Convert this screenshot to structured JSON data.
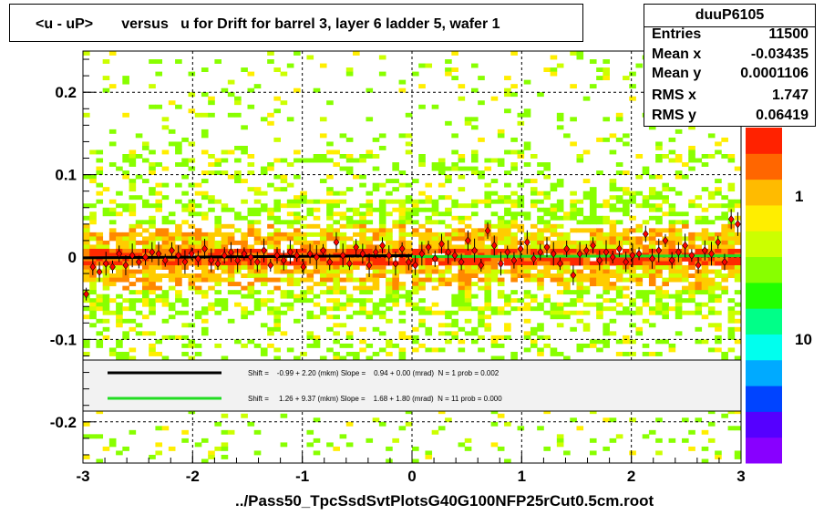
{
  "title": "<u - uP>       versus   u for Drift for barrel 3, layer 6 ladder 5, wafer 1",
  "stats": {
    "name": "duuP6105",
    "rows": [
      {
        "label": "Entries",
        "value": "11500"
      },
      {
        "label": "Mean x",
        "value": "-0.03435"
      },
      {
        "label": "Mean y",
        "value": "0.0001106"
      },
      {
        "label": "RMS x",
        "value": "1.747"
      },
      {
        "label": "RMS y",
        "value": "0.06419"
      }
    ]
  },
  "filename": "../Pass50_TpcSsdSvtPlotsG40G100NFP25rCut0.5cm.root",
  "legend": {
    "entries": [
      {
        "text": "Shift =    -0.99 + 2.20 (mkm) Slope =    0.94 + 0.00 (mrad)  N = 1 prob = 0.002",
        "color": "#000000"
      },
      {
        "text": "Shift =     1.26 + 9.37 (mkm) Slope =    1.68 + 1.80 (mrad)  N = 11 prob = 0.000",
        "color": "#00dd00"
      }
    ]
  },
  "colors": {
    "palette": [
      "#8800ff",
      "#5500ff",
      "#0044ff",
      "#00aaff",
      "#00ffee",
      "#00ff88",
      "#22ff00",
      "#88ff00",
      "#ccff00",
      "#ffee00",
      "#ffbb00",
      "#ff6600",
      "#ff2200"
    ],
    "fit_black": "#000000",
    "fit_green": "#22dd22",
    "points": "#ff0000"
  },
  "chart_data": {
    "type": "heatmap",
    "title": "<u - uP>       versus   u for Drift for barrel 3, layer 6 ladder 5, wafer 1",
    "xlabel": "../Pass50_TpcSsdSvtPlotsG40G100NFP25rCut0.5cm.root",
    "ylabel": "",
    "xlim": [
      -3,
      3
    ],
    "ylim": [
      -0.25,
      0.25
    ],
    "x_ticks": [
      "-3",
      "-2",
      "-1",
      "0",
      "1",
      "2",
      "3"
    ],
    "y_ticks": [
      "-0.2",
      "-0.1",
      "0",
      "0.1",
      "0.2"
    ],
    "z_ticks": [
      "1",
      "10"
    ],
    "z_scale": "log",
    "grid": true,
    "profile_points": {
      "x": [
        -2.97,
        -2.91,
        -2.85,
        -2.79,
        -2.73,
        -2.67,
        -2.61,
        -2.55,
        -2.49,
        -2.43,
        -2.37,
        -2.31,
        -2.25,
        -2.19,
        -2.13,
        -2.07,
        -2.01,
        -1.95,
        -1.89,
        -1.83,
        -1.77,
        -1.71,
        -1.65,
        -1.59,
        -1.53,
        -1.47,
        -1.41,
        -1.35,
        -1.29,
        -1.23,
        -1.17,
        -1.11,
        -1.05,
        -0.99,
        -0.93,
        -0.87,
        -0.81,
        -0.75,
        -0.69,
        -0.63,
        -0.57,
        -0.51,
        -0.45,
        -0.39,
        -0.33,
        -0.27,
        -0.21,
        -0.15,
        -0.09,
        -0.03,
        0.03,
        0.09,
        0.15,
        0.21,
        0.27,
        0.33,
        0.39,
        0.45,
        0.51,
        0.57,
        0.63,
        0.69,
        0.75,
        0.81,
        0.87,
        0.93,
        0.99,
        1.05,
        1.11,
        1.17,
        1.23,
        1.29,
        1.35,
        1.41,
        1.47,
        1.53,
        1.59,
        1.65,
        1.71,
        1.77,
        1.83,
        1.89,
        1.95,
        2.01,
        2.07,
        2.13,
        2.19,
        2.25,
        2.31,
        2.37,
        2.43,
        2.49,
        2.55,
        2.61,
        2.67,
        2.73,
        2.79,
        2.85,
        2.91,
        2.97
      ],
      "y": [
        -0.045,
        -0.012,
        -0.018,
        -0.008,
        -0.012,
        0.004,
        -0.01,
        0.002,
        -0.006,
        0.0,
        0.006,
        0.004,
        -0.004,
        0.008,
        0.002,
        -0.006,
        0.004,
        -0.002,
        0.01,
        -0.004,
        -0.008,
        0.002,
        0.006,
        -0.004,
        0.004,
        0.0,
        -0.006,
        0.008,
        -0.01,
        0.002,
        -0.004,
        0.006,
        0.002,
        -0.012,
        0.004,
        0.0,
        0.008,
        -0.006,
        0.018,
        0.002,
        -0.008,
        0.012,
        0.004,
        -0.01,
        0.006,
        0.014,
        0.002,
        -0.008,
        0.01,
        -0.006,
        -0.01,
        0.004,
        0.012,
        -0.002,
        0.016,
        0.006,
        0.002,
        -0.006,
        0.02,
        0.008,
        -0.01,
        0.032,
        0.014,
        -0.008,
        0.006,
        -0.004,
        0.01,
        0.018,
        -0.002,
        0.006,
        0.012,
        0.004,
        -0.008,
        0.01,
        -0.022,
        0.004,
        0.008,
        0.014,
        -0.004,
        0.006,
        0.0,
        0.01,
        -0.006,
        0.002,
        0.004,
        0.028,
        -0.002,
        0.008,
        0.02,
        -0.004,
        0.006,
        0.014,
        0.002,
        -0.01,
        0.008,
        0.004,
        0.018,
        -0.006,
        0.046,
        0.04
      ]
    },
    "fits": [
      {
        "name": "",
        "x": [
          -3.0,
          0.0
        ],
        "y": [
          -0.001,
          0.0018
        ]
      },
      {
        "name": "",
        "x": [
          0.0,
          3.0
        ],
        "y": [
          0.0005,
          0.0015
        ]
      }
    ]
  }
}
